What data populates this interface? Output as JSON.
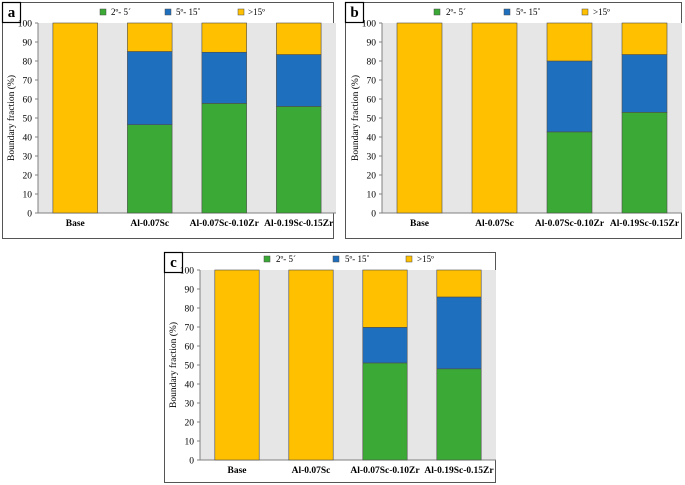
{
  "colors": {
    "low": "#3AA935",
    "mid": "#1F6FBF",
    "high": "#FFC000",
    "plot_bg": "#E6E6E6",
    "frame": "#555555",
    "label_box_bg": "#FFFFFF"
  },
  "chart_data": [
    {
      "panel": "a",
      "type": "bar",
      "stacked": true,
      "categories": [
        "Base",
        "Al-0.07Sc",
        "Al-0.07Sc-0.10Zr",
        "Al-0.19Sc-0.15Zr"
      ],
      "series": [
        {
          "name": "2º- 5´",
          "key": "low",
          "values": [
            0,
            46.5,
            57.7,
            56.1
          ]
        },
        {
          "name": "5º- 15˚",
          "key": "mid",
          "values": [
            0,
            38.5,
            26.9,
            27.3
          ]
        },
        {
          "name": ">15º",
          "key": "high",
          "values": [
            100,
            15,
            15.4,
            16.6
          ]
        }
      ],
      "ylabel": "Boundary fraction (%)",
      "xlabel": "",
      "ylim": [
        0,
        100
      ],
      "yticks": [
        0,
        10,
        20,
        30,
        40,
        50,
        60,
        70,
        80,
        90,
        100
      ],
      "grid": false,
      "legend": "top"
    },
    {
      "panel": "b",
      "type": "bar",
      "stacked": true,
      "categories": [
        "Base",
        "Al-0.07Sc",
        "Al-0.07Sc-0.10Zr",
        "Al-0.19Sc-0.15Zr"
      ],
      "series": [
        {
          "name": "2º- 5´",
          "key": "low",
          "values": [
            0,
            0,
            42.7,
            53
          ]
        },
        {
          "name": "5º- 15˚",
          "key": "mid",
          "values": [
            0,
            0,
            37.3,
            30.4
          ]
        },
        {
          "name": ">15º",
          "key": "high",
          "values": [
            100,
            100,
            20,
            16.6
          ]
        }
      ],
      "ylabel": "Boundary fraction (%)",
      "xlabel": "",
      "ylim": [
        0,
        100
      ],
      "yticks": [
        0,
        10,
        20,
        30,
        40,
        50,
        60,
        70,
        80,
        90,
        100
      ],
      "grid": false,
      "legend": "top"
    },
    {
      "panel": "c",
      "type": "bar",
      "stacked": true,
      "categories": [
        "Base",
        "Al-0.07Sc",
        "Al-0.07Sc-0.10Zr",
        "Al-0.19Sc-0.15Zr"
      ],
      "series": [
        {
          "name": "2º- 5´",
          "key": "low",
          "values": [
            0,
            0,
            51.1,
            48
          ]
        },
        {
          "name": "5º- 15˚",
          "key": "mid",
          "values": [
            0,
            0,
            18.7,
            37.8
          ]
        },
        {
          "name": ">15º",
          "key": "high",
          "values": [
            100,
            100,
            30.2,
            14.2
          ]
        }
      ],
      "ylabel": "Boundary fraction (%)",
      "xlabel": "",
      "ylim": [
        0,
        100
      ],
      "yticks": [
        0,
        10,
        20,
        30,
        40,
        50,
        60,
        70,
        80,
        90,
        100
      ],
      "grid": false,
      "legend": "top"
    }
  ]
}
